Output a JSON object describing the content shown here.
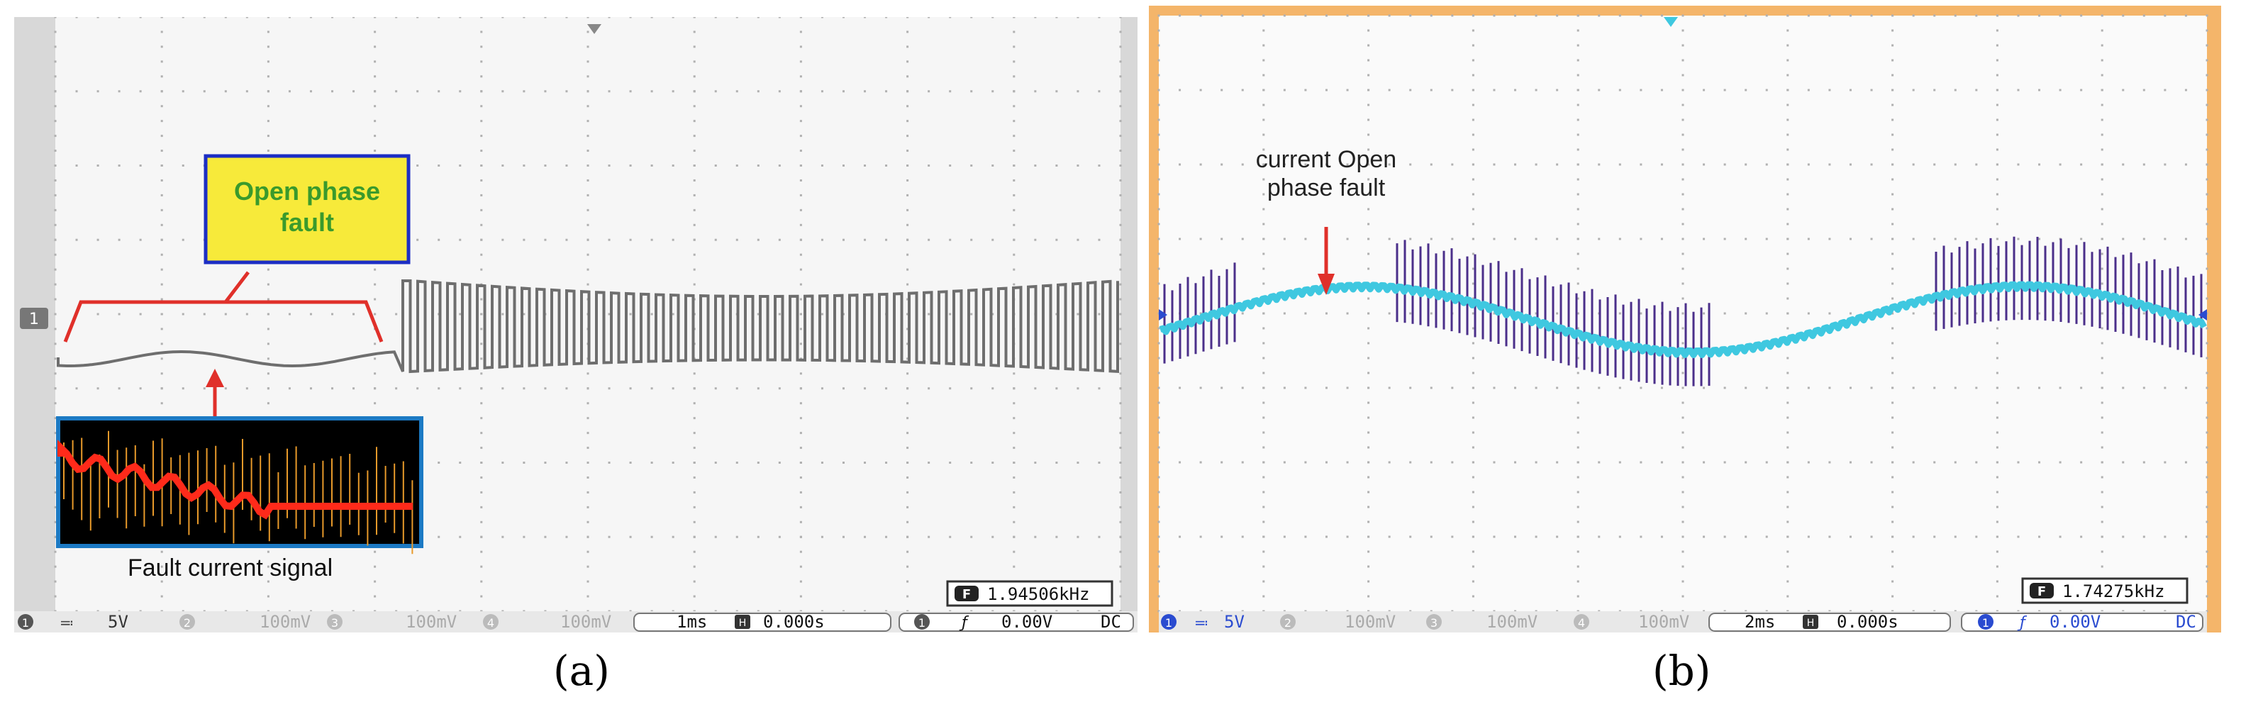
{
  "panel_a": {
    "callout": {
      "line1": "Open phase",
      "line2": "fault"
    },
    "inset_label": "Fault current signal",
    "frequency": "1.94506kHz",
    "channel_marker": "1",
    "status": {
      "ch1": "1",
      "ch1_scale": "5V",
      "ch2": "2",
      "ch2_scale": "100mV",
      "ch3": "3",
      "ch3_scale": "100mV",
      "ch4": "4",
      "ch4_scale": "100mV",
      "timebase": "1ms",
      "delay": "0.000s",
      "trig_ch": "1",
      "trig_level": "0.00V",
      "coupling": "DC"
    },
    "caption": "(a)"
  },
  "panel_b": {
    "annotation": {
      "line1": "current Open",
      "line2": "phase fault"
    },
    "frequency": "1.74275kHz",
    "status": {
      "ch1": "1",
      "ch1_scale": "5V",
      "ch2": "2",
      "ch2_scale": "100mV",
      "ch3": "3",
      "ch3_scale": "100mV",
      "ch4": "4",
      "ch4_scale": "100mV",
      "timebase": "2ms",
      "delay": "0.000s",
      "trig_ch": "1",
      "trig_level": "0.00V",
      "coupling": "DC"
    },
    "caption": "(b)"
  },
  "colors": {
    "grid_dots": "#b0b0b0",
    "trace_a": "#6e6e6e",
    "trace_b_cyan": "#3fc8e0",
    "trace_b_purple": "#4b2f8a",
    "annotation_red": "#e0302a",
    "callout_fill": "#f7ea3a",
    "callout_border": "#1c2ec4",
    "callout_text": "#3a9a2c",
    "frame_b": "#f4b56a"
  }
}
